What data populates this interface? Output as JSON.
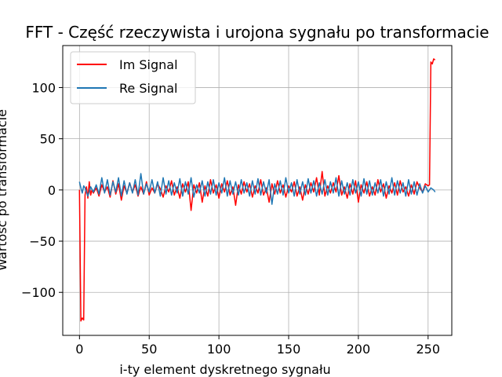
{
  "chart_data": {
    "type": "line",
    "title": "FFT - Część rzeczywista i urojona sygnału po transformacie",
    "xlabel": "i-ty element dyskretnego sygnału",
    "ylabel": "Wartość po transformacie",
    "xlim": [
      -12,
      267
    ],
    "ylim": [
      -142,
      141
    ],
    "xticks": [
      0,
      50,
      100,
      150,
      200,
      250
    ],
    "yticks": [
      -100,
      -50,
      0,
      50,
      100
    ],
    "grid": true,
    "legend": "upper-left",
    "series": [
      {
        "name": "Im Signal",
        "color": "#ff0000",
        "x": [
          0,
          1,
          2,
          3,
          4,
          5,
          6,
          7,
          8,
          9,
          10,
          12,
          14,
          16,
          18,
          20,
          22,
          24,
          26,
          28,
          30,
          32,
          34,
          36,
          38,
          40,
          42,
          44,
          46,
          48,
          50,
          52,
          54,
          56,
          58,
          60,
          62,
          64,
          66,
          68,
          70,
          72,
          74,
          76,
          78,
          80,
          82,
          84,
          86,
          88,
          90,
          92,
          94,
          96,
          98,
          100,
          102,
          104,
          106,
          108,
          110,
          112,
          114,
          116,
          118,
          120,
          122,
          124,
          126,
          128,
          130,
          132,
          134,
          136,
          138,
          140,
          142,
          144,
          146,
          148,
          150,
          152,
          154,
          156,
          158,
          160,
          162,
          164,
          166,
          168,
          170,
          172,
          174,
          176,
          178,
          180,
          182,
          184,
          186,
          188,
          190,
          192,
          194,
          196,
          198,
          200,
          202,
          204,
          206,
          208,
          210,
          212,
          214,
          216,
          218,
          220,
          222,
          224,
          226,
          228,
          230,
          232,
          234,
          236,
          238,
          240,
          242,
          244,
          246,
          248,
          250,
          251,
          252,
          253,
          254,
          255
        ],
        "values": [
          0,
          -128,
          -125,
          -127,
          -5,
          3,
          -8,
          8,
          -5,
          0,
          -3,
          2,
          -6,
          5,
          -2,
          3,
          -7,
          9,
          -4,
          6,
          -10,
          4,
          -3,
          7,
          -2,
          5,
          -6,
          3,
          -4,
          8,
          -5,
          2,
          -3,
          6,
          1,
          -7,
          4,
          -2,
          9,
          -5,
          3,
          -8,
          6,
          -2,
          8,
          -20,
          5,
          -3,
          7,
          -12,
          4,
          -6,
          10,
          -3,
          5,
          -8,
          6,
          -2,
          9,
          -5,
          3,
          -15,
          5,
          -4,
          8,
          -2,
          6,
          -7,
          4,
          -3,
          10,
          -5,
          2,
          -12,
          6,
          -4,
          9,
          -3,
          5,
          -7,
          4,
          -2,
          8,
          -6,
          3,
          -10,
          5,
          -4,
          7,
          -2,
          12,
          -5,
          18,
          -6,
          4,
          -3,
          7,
          -2,
          14,
          -5,
          3,
          -8,
          6,
          -4,
          9,
          -12,
          5,
          -3,
          8,
          -6,
          3,
          -5,
          10,
          -2,
          6,
          -8,
          4,
          -3,
          7,
          -5,
          9,
          -2,
          3,
          -6,
          5,
          -4,
          8,
          2,
          -2,
          6,
          4,
          5,
          125,
          123,
          128,
          127
        ]
      },
      {
        "name": "Re Signal",
        "color": "#1f77b4",
        "x": [
          0,
          1,
          2,
          3,
          4,
          6,
          8,
          10,
          12,
          14,
          16,
          18,
          20,
          22,
          24,
          26,
          28,
          30,
          32,
          34,
          36,
          38,
          40,
          42,
          44,
          46,
          48,
          50,
          52,
          54,
          56,
          58,
          60,
          62,
          64,
          66,
          68,
          70,
          72,
          74,
          76,
          78,
          80,
          82,
          84,
          86,
          88,
          90,
          92,
          94,
          96,
          98,
          100,
          102,
          104,
          106,
          108,
          110,
          112,
          114,
          116,
          118,
          120,
          122,
          124,
          126,
          128,
          130,
          132,
          134,
          136,
          138,
          140,
          142,
          144,
          146,
          148,
          150,
          152,
          154,
          156,
          158,
          160,
          162,
          164,
          166,
          168,
          170,
          172,
          174,
          176,
          178,
          180,
          182,
          184,
          186,
          188,
          190,
          192,
          194,
          196,
          198,
          200,
          202,
          204,
          206,
          208,
          210,
          212,
          214,
          216,
          218,
          220,
          222,
          224,
          226,
          228,
          230,
          232,
          234,
          236,
          238,
          240,
          242,
          244,
          246,
          248,
          250,
          252,
          254,
          255
        ],
        "values": [
          8,
          2,
          -3,
          4,
          2,
          -6,
          3,
          -2,
          5,
          -4,
          12,
          -3,
          10,
          -5,
          8,
          -2,
          12,
          -6,
          9,
          -4,
          7,
          -3,
          10,
          -5,
          16,
          -4,
          6,
          -2,
          10,
          -3,
          8,
          -6,
          12,
          -4,
          9,
          -5,
          7,
          -3,
          11,
          -6,
          8,
          -4,
          12,
          -7,
          5,
          -3,
          9,
          -6,
          8,
          -4,
          10,
          -5,
          7,
          -3,
          12,
          -6,
          9,
          -4,
          8,
          -5,
          10,
          -3,
          7,
          -6,
          9,
          -4,
          11,
          -5,
          8,
          -3,
          10,
          -14,
          6,
          -4,
          9,
          -5,
          12,
          -3,
          7,
          -6,
          10,
          -4,
          8,
          -5,
          11,
          -3,
          9,
          -6,
          7,
          -4,
          10,
          -5,
          8,
          -3,
          12,
          -6,
          9,
          -4,
          7,
          -5,
          10,
          -3,
          8,
          -6,
          11,
          -4,
          9,
          -5,
          7,
          -3,
          10,
          -6,
          8,
          -4,
          12,
          -5,
          9,
          -3,
          7,
          -6,
          10,
          -4,
          8,
          -5,
          6,
          -3,
          4,
          -2,
          2,
          0,
          -2
        ]
      }
    ]
  }
}
